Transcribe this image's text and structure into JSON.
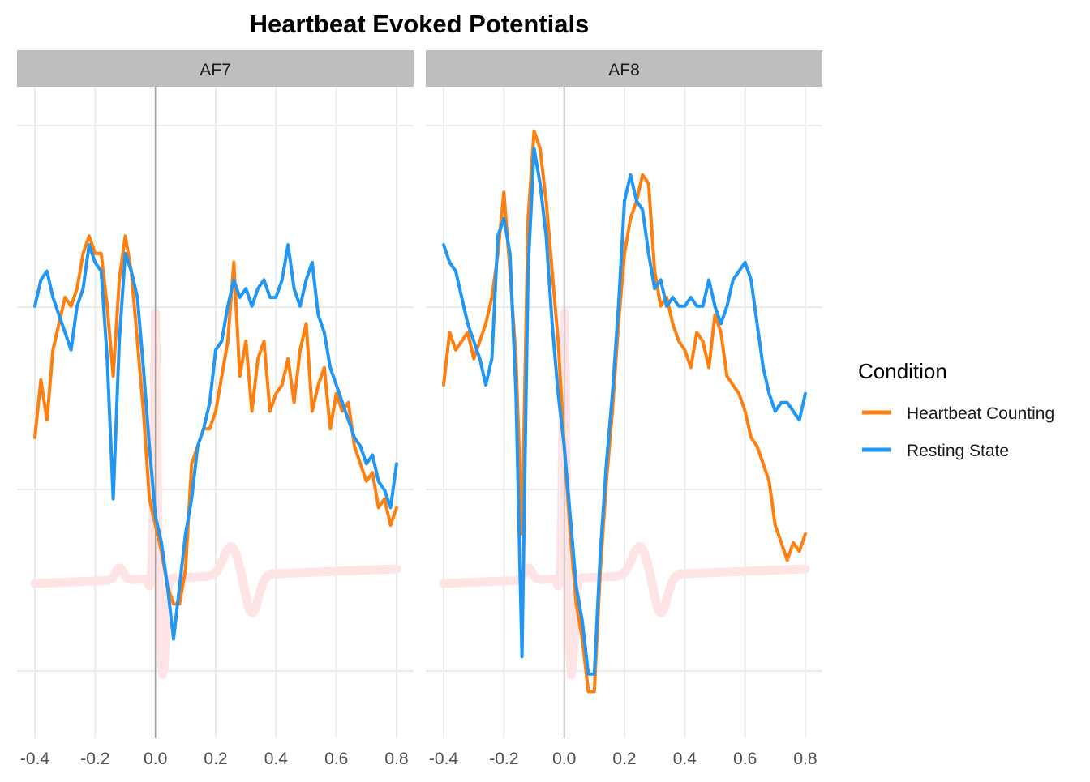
{
  "chart_data": {
    "type": "line",
    "title": "Heartbeat Evoked Potentials",
    "xlabel": "",
    "ylabel": "",
    "xlim": [
      -0.4,
      0.8
    ],
    "x_ticks": [
      "-0.4",
      "-0.2",
      "0.0",
      "0.2",
      "0.4",
      "0.6",
      "0.8"
    ],
    "y_tick_labels": [],
    "grid": true,
    "legend": {
      "title": "Condition",
      "position": "right",
      "entries": [
        "Heartbeat Counting",
        "Resting State"
      ]
    },
    "colors": {
      "Heartbeat Counting": "#FF7F0E",
      "Resting State": "#2196F3",
      "ecg": "#FFE4E6",
      "strip": "#BEBEBE",
      "grid": "#EBEBEB",
      "zero_line": "#A0A0A0"
    },
    "panels": [
      {
        "label": "AF7",
        "series": [
          {
            "name": "Heartbeat Counting",
            "x": [
              -0.4,
              -0.38,
              -0.36,
              -0.34,
              -0.32,
              -0.3,
              -0.28,
              -0.26,
              -0.24,
              -0.22,
              -0.2,
              -0.18,
              -0.16,
              -0.14,
              -0.12,
              -0.1,
              -0.08,
              -0.06,
              -0.04,
              -0.02,
              0.0,
              0.02,
              0.04,
              0.06,
              0.08,
              0.1,
              0.12,
              0.14,
              0.16,
              0.18,
              0.2,
              0.22,
              0.24,
              0.26,
              0.28,
              0.3,
              0.32,
              0.34,
              0.36,
              0.38,
              0.4,
              0.42,
              0.44,
              0.46,
              0.48,
              0.5,
              0.52,
              0.54,
              0.56,
              0.58,
              0.6,
              0.62,
              0.64,
              0.66,
              0.68,
              0.7,
              0.72,
              0.74,
              0.76,
              0.78,
              0.8
            ],
            "y": [
              -0.75,
              -0.42,
              -0.65,
              -0.25,
              -0.1,
              0.05,
              0.0,
              0.1,
              0.3,
              0.4,
              0.3,
              0.3,
              0.0,
              -0.4,
              0.15,
              0.4,
              0.2,
              -0.2,
              -0.6,
              -1.1,
              -1.25,
              -1.4,
              -1.6,
              -1.7,
              -1.7,
              -1.5,
              -0.9,
              -0.8,
              -0.7,
              -0.7,
              -0.6,
              -0.4,
              -0.2,
              0.25,
              -0.4,
              -0.2,
              -0.6,
              -0.3,
              -0.2,
              -0.6,
              -0.5,
              -0.45,
              -0.3,
              -0.55,
              -0.25,
              -0.1,
              -0.6,
              -0.45,
              -0.35,
              -0.7,
              -0.5,
              -0.6,
              -0.55,
              -0.8,
              -0.9,
              -1.0,
              -0.95,
              -1.15,
              -1.1,
              -1.25,
              -1.15
            ]
          },
          {
            "name": "Resting State",
            "x": [
              -0.4,
              -0.38,
              -0.36,
              -0.34,
              -0.32,
              -0.3,
              -0.28,
              -0.26,
              -0.24,
              -0.22,
              -0.2,
              -0.18,
              -0.16,
              -0.14,
              -0.12,
              -0.1,
              -0.08,
              -0.06,
              -0.04,
              -0.02,
              0.0,
              0.02,
              0.04,
              0.06,
              0.08,
              0.1,
              0.12,
              0.14,
              0.16,
              0.18,
              0.2,
              0.22,
              0.24,
              0.26,
              0.28,
              0.3,
              0.32,
              0.34,
              0.36,
              0.38,
              0.4,
              0.42,
              0.44,
              0.46,
              0.48,
              0.5,
              0.52,
              0.54,
              0.56,
              0.58,
              0.6,
              0.62,
              0.64,
              0.66,
              0.68,
              0.7,
              0.72,
              0.74,
              0.76,
              0.78,
              0.8
            ],
            "y": [
              0.0,
              0.15,
              0.2,
              0.05,
              -0.05,
              -0.15,
              -0.25,
              0.0,
              0.1,
              0.35,
              0.25,
              0.2,
              -0.3,
              -1.1,
              -0.2,
              0.3,
              0.2,
              0.05,
              -0.35,
              -0.8,
              -1.2,
              -1.35,
              -1.6,
              -1.9,
              -1.6,
              -1.3,
              -1.1,
              -0.8,
              -0.7,
              -0.55,
              -0.25,
              -0.2,
              0.0,
              0.15,
              0.05,
              0.1,
              0.0,
              0.1,
              0.15,
              0.05,
              0.05,
              0.15,
              0.35,
              0.1,
              0.0,
              0.15,
              0.25,
              -0.05,
              -0.15,
              -0.35,
              -0.45,
              -0.55,
              -0.65,
              -0.75,
              -0.8,
              -0.9,
              -0.85,
              -1.0,
              -1.05,
              -1.15,
              -0.9
            ]
          }
        ]
      },
      {
        "label": "AF8",
        "series": [
          {
            "name": "Heartbeat Counting",
            "x": [
              -0.4,
              -0.38,
              -0.36,
              -0.34,
              -0.32,
              -0.3,
              -0.28,
              -0.26,
              -0.24,
              -0.22,
              -0.2,
              -0.18,
              -0.16,
              -0.14,
              -0.12,
              -0.1,
              -0.08,
              -0.06,
              -0.04,
              -0.02,
              0.0,
              0.02,
              0.04,
              0.06,
              0.08,
              0.1,
              0.12,
              0.14,
              0.16,
              0.18,
              0.2,
              0.22,
              0.24,
              0.26,
              0.28,
              0.3,
              0.32,
              0.34,
              0.36,
              0.38,
              0.4,
              0.42,
              0.44,
              0.46,
              0.48,
              0.5,
              0.52,
              0.54,
              0.56,
              0.58,
              0.6,
              0.62,
              0.64,
              0.66,
              0.68,
              0.7,
              0.72,
              0.74,
              0.76,
              0.78,
              0.8
            ],
            "y": [
              -0.45,
              -0.15,
              -0.25,
              -0.2,
              -0.15,
              -0.3,
              -0.2,
              -0.1,
              0.05,
              0.3,
              0.65,
              0.2,
              -0.3,
              -1.3,
              0.5,
              1.0,
              0.9,
              0.6,
              0.2,
              -0.2,
              -0.8,
              -1.3,
              -1.7,
              -1.9,
              -2.2,
              -2.2,
              -1.5,
              -1.0,
              -0.6,
              -0.1,
              0.3,
              0.5,
              0.6,
              0.75,
              0.7,
              0.2,
              0.0,
              0.05,
              -0.1,
              -0.2,
              -0.25,
              -0.35,
              -0.15,
              -0.2,
              -0.35,
              -0.05,
              -0.15,
              -0.4,
              -0.45,
              -0.5,
              -0.6,
              -0.75,
              -0.8,
              -0.9,
              -1.0,
              -1.25,
              -1.35,
              -1.45,
              -1.35,
              -1.4,
              -1.3
            ]
          },
          {
            "name": "Resting State",
            "x": [
              -0.4,
              -0.38,
              -0.36,
              -0.34,
              -0.32,
              -0.3,
              -0.28,
              -0.26,
              -0.24,
              -0.22,
              -0.2,
              -0.18,
              -0.16,
              -0.14,
              -0.12,
              -0.1,
              -0.08,
              -0.06,
              -0.04,
              -0.02,
              0.0,
              0.02,
              0.04,
              0.06,
              0.08,
              0.1,
              0.12,
              0.14,
              0.16,
              0.18,
              0.2,
              0.22,
              0.24,
              0.26,
              0.28,
              0.3,
              0.32,
              0.34,
              0.36,
              0.38,
              0.4,
              0.42,
              0.44,
              0.46,
              0.48,
              0.5,
              0.52,
              0.54,
              0.56,
              0.58,
              0.6,
              0.62,
              0.64,
              0.66,
              0.68,
              0.7,
              0.72,
              0.74,
              0.76,
              0.78,
              0.8
            ],
            "y": [
              0.35,
              0.25,
              0.2,
              0.05,
              -0.1,
              -0.2,
              -0.3,
              -0.45,
              -0.3,
              0.4,
              0.5,
              0.3,
              -0.5,
              -2.0,
              0.2,
              0.9,
              0.7,
              0.4,
              -0.1,
              -0.5,
              -0.8,
              -1.2,
              -1.6,
              -1.8,
              -2.1,
              -2.1,
              -1.4,
              -0.9,
              -0.5,
              0.0,
              0.6,
              0.75,
              0.6,
              0.55,
              0.3,
              0.1,
              0.15,
              0.0,
              0.05,
              0.0,
              0.0,
              0.05,
              0.0,
              0.0,
              0.15,
              0.0,
              -0.1,
              0.0,
              0.15,
              0.2,
              0.25,
              0.15,
              -0.1,
              -0.35,
              -0.5,
              -0.6,
              -0.55,
              -0.55,
              -0.6,
              -0.65,
              -0.5
            ]
          }
        ]
      }
    ]
  }
}
